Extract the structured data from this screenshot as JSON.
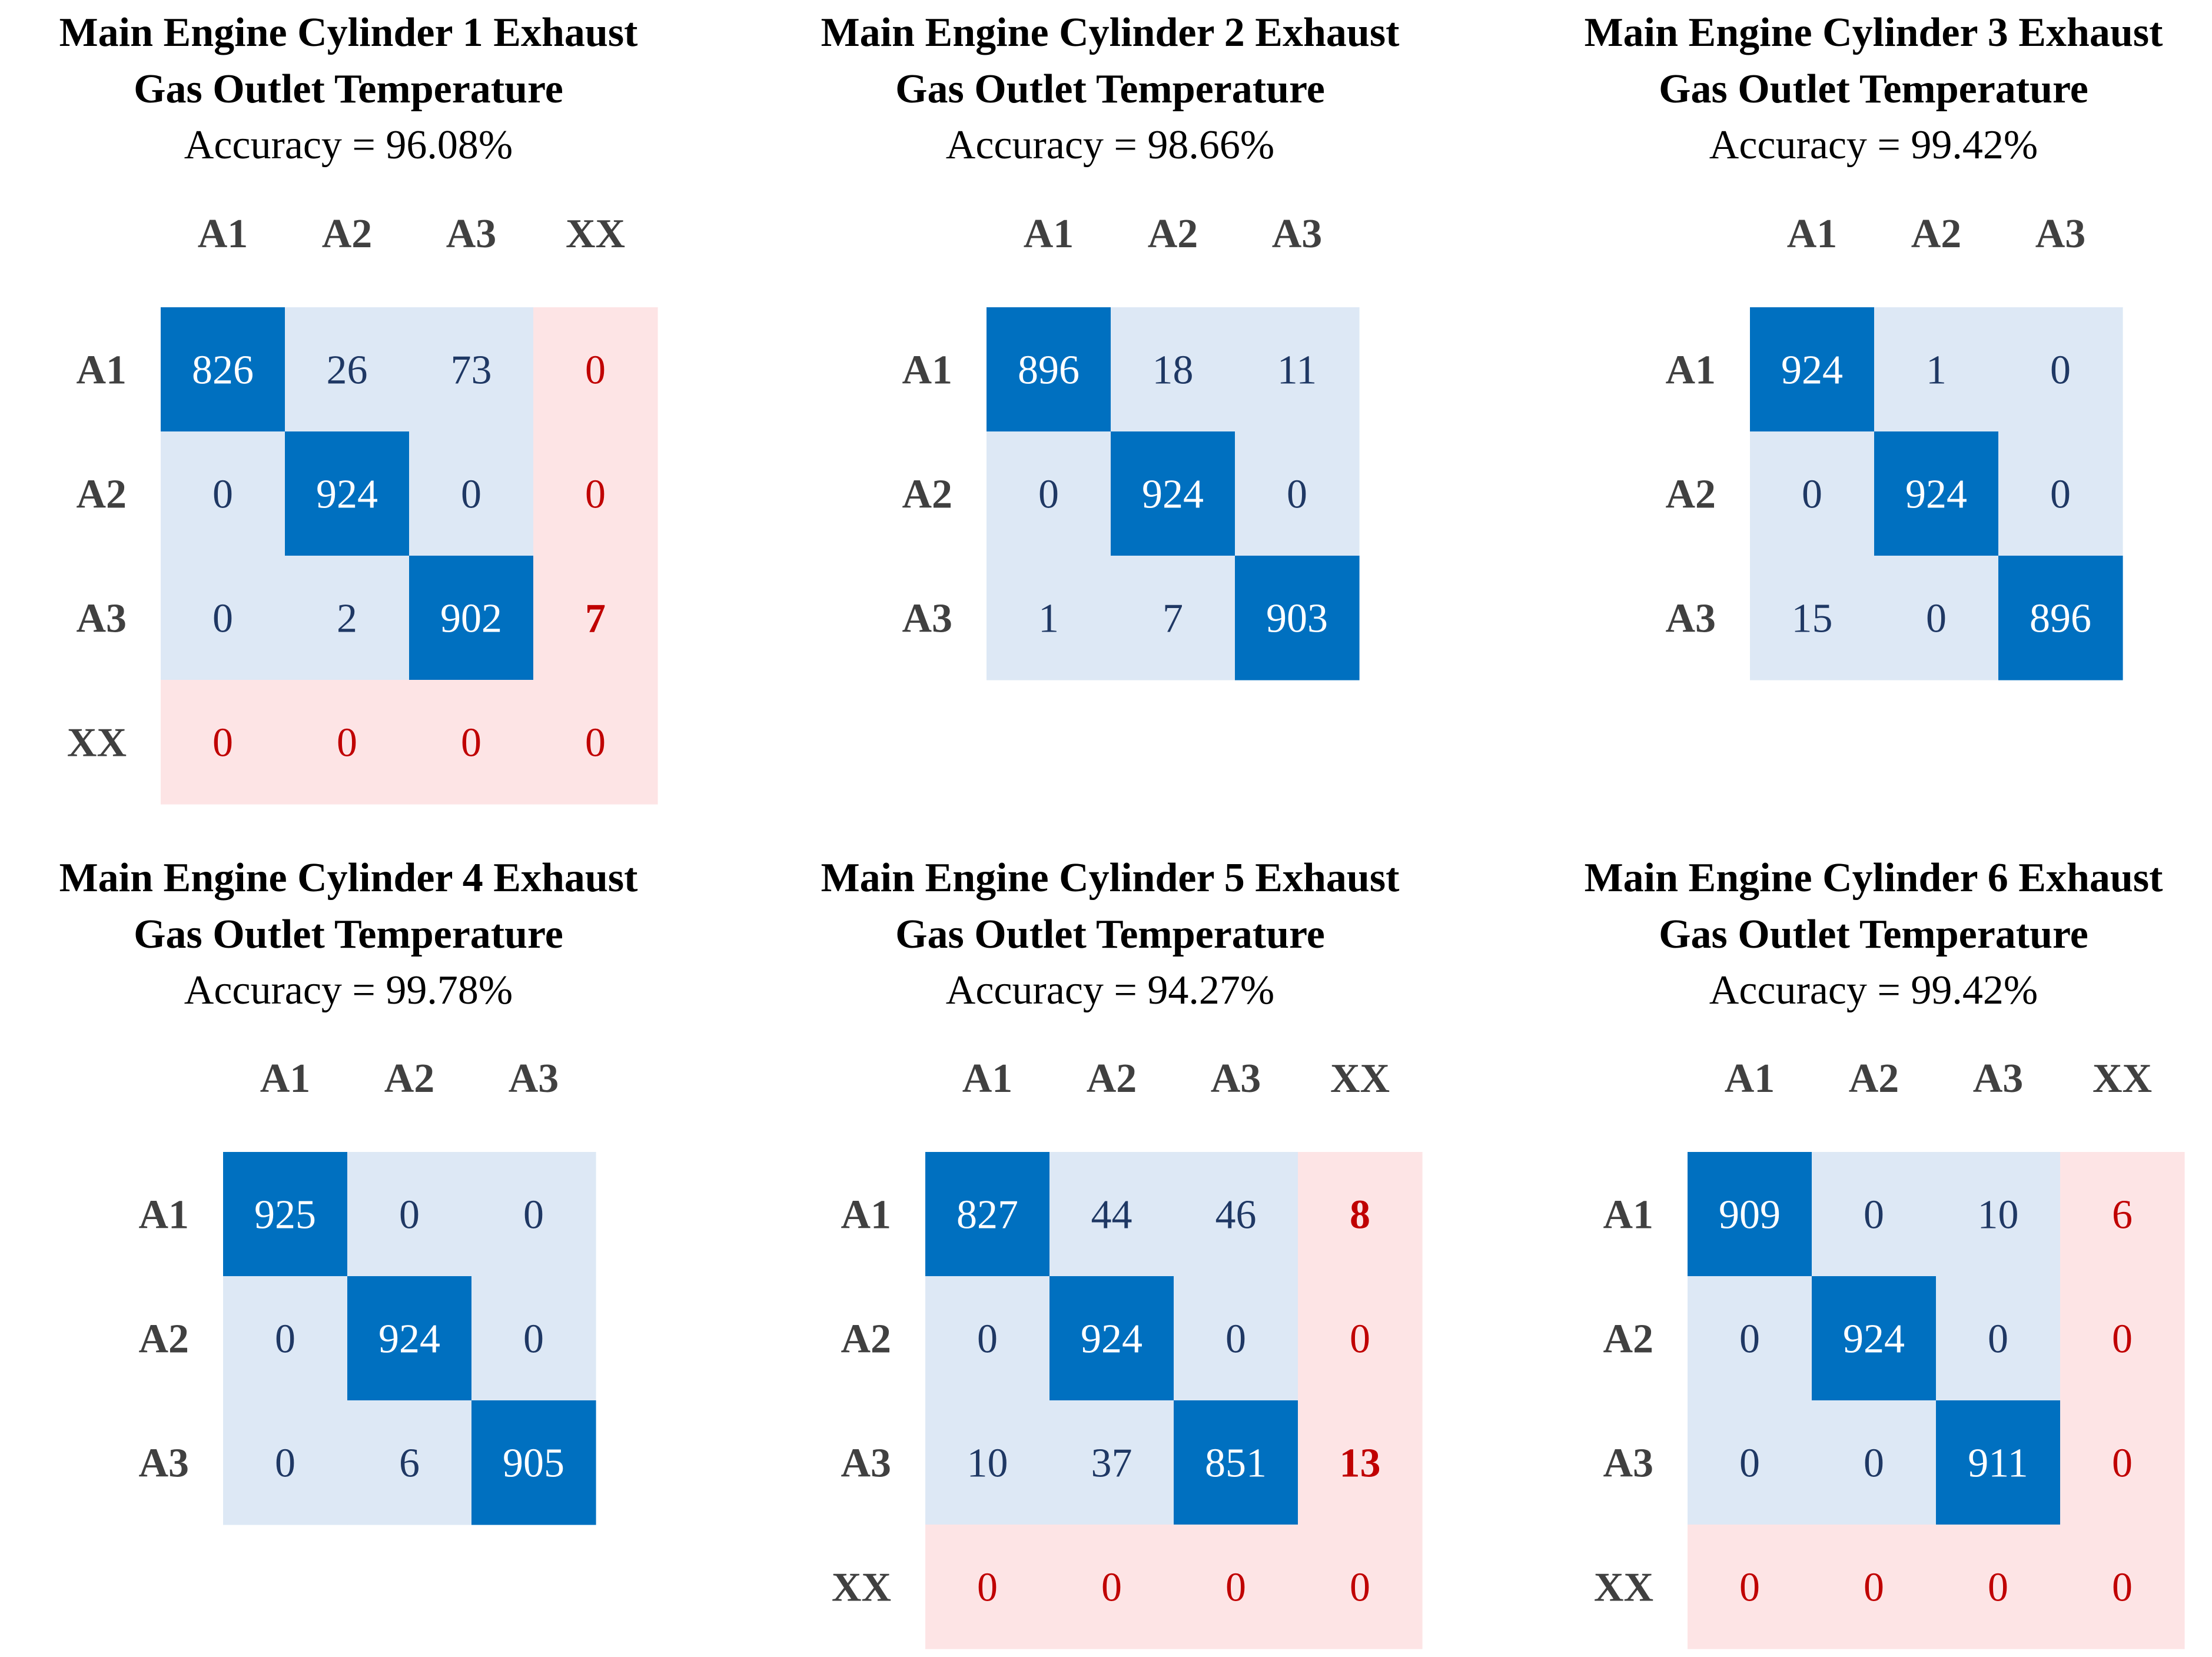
{
  "colors": {
    "diag": "#0070c0",
    "offdiag": "#dde8f5",
    "xx": "#fde4e5",
    "text_on_dark": "#ffffff",
    "text_on_light": "#1f3864",
    "text_xx": "#c00000"
  },
  "chart_data": [
    {
      "type": "heatmap",
      "title_line1": "Main Engine Cylinder 1 Exhaust",
      "title_line2": "Gas Outlet Temperature",
      "accuracy": "Accuracy = 96.08%",
      "labels": [
        "A1",
        "A2",
        "A3",
        "XX"
      ],
      "matrix": [
        [
          826,
          26,
          73,
          0
        ],
        [
          0,
          924,
          0,
          0
        ],
        [
          0,
          2,
          902,
          7
        ],
        [
          0,
          0,
          0,
          0
        ]
      ],
      "bold": [
        [
          false,
          false,
          false,
          false
        ],
        [
          false,
          false,
          false,
          false
        ],
        [
          false,
          false,
          false,
          true
        ],
        [
          false,
          false,
          false,
          false
        ]
      ]
    },
    {
      "type": "heatmap",
      "title_line1": "Main Engine Cylinder 2 Exhaust",
      "title_line2": "Gas Outlet Temperature",
      "accuracy": "Accuracy = 98.66%",
      "labels": [
        "A1",
        "A2",
        "A3"
      ],
      "matrix": [
        [
          896,
          18,
          11
        ],
        [
          0,
          924,
          0
        ],
        [
          1,
          7,
          903
        ]
      ]
    },
    {
      "type": "heatmap",
      "title_line1": "Main Engine Cylinder 3 Exhaust",
      "title_line2": "Gas Outlet Temperature",
      "accuracy": "Accuracy = 99.42%",
      "labels": [
        "A1",
        "A2",
        "A3"
      ],
      "matrix": [
        [
          924,
          1,
          0
        ],
        [
          0,
          924,
          0
        ],
        [
          15,
          0,
          896
        ]
      ]
    },
    {
      "type": "heatmap",
      "title_line1": "Main Engine Cylinder 4 Exhaust",
      "title_line2": "Gas Outlet Temperature",
      "accuracy": "Accuracy = 99.78%",
      "labels": [
        "A1",
        "A2",
        "A3"
      ],
      "matrix": [
        [
          925,
          0,
          0
        ],
        [
          0,
          924,
          0
        ],
        [
          0,
          6,
          905
        ]
      ]
    },
    {
      "type": "heatmap",
      "title_line1": "Main Engine Cylinder 5 Exhaust",
      "title_line2": "Gas Outlet Temperature",
      "accuracy": "Accuracy = 94.27%",
      "labels": [
        "A1",
        "A2",
        "A3",
        "XX"
      ],
      "matrix": [
        [
          827,
          44,
          46,
          8
        ],
        [
          0,
          924,
          0,
          0
        ],
        [
          10,
          37,
          851,
          13
        ],
        [
          0,
          0,
          0,
          0
        ]
      ],
      "bold": [
        [
          false,
          false,
          false,
          true
        ],
        [
          false,
          false,
          false,
          false
        ],
        [
          false,
          false,
          false,
          true
        ],
        [
          false,
          false,
          false,
          false
        ]
      ]
    },
    {
      "type": "heatmap",
      "title_line1": "Main Engine Cylinder 6 Exhaust",
      "title_line2": "Gas Outlet Temperature",
      "accuracy": "Accuracy = 99.42%",
      "labels": [
        "A1",
        "A2",
        "A3",
        "XX"
      ],
      "matrix": [
        [
          909,
          0,
          10,
          6
        ],
        [
          0,
          924,
          0,
          0
        ],
        [
          0,
          0,
          911,
          0
        ],
        [
          0,
          0,
          0,
          0
        ]
      ]
    }
  ]
}
